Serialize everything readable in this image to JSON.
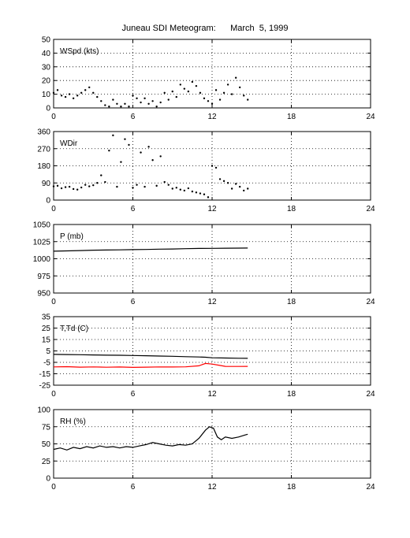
{
  "figure": {
    "title": "Juneau SDI Meteogram:      March  5, 1999"
  },
  "chart_data": [
    {
      "type": "scatter",
      "id": "wspd",
      "label": "WSpd (kts)",
      "xlim": [
        0,
        24
      ],
      "ylim": [
        0,
        50
      ],
      "xticks": [
        0,
        6,
        12,
        18,
        24
      ],
      "yticks": [
        0,
        10,
        20,
        30,
        40,
        50
      ],
      "grid": true,
      "series": [
        {
          "color": "#000000",
          "style": "dots",
          "points": [
            [
              0.0,
              11
            ],
            [
              0.3,
              13
            ],
            [
              0.6,
              9
            ],
            [
              0.9,
              8
            ],
            [
              1.2,
              10
            ],
            [
              1.5,
              7
            ],
            [
              1.8,
              9
            ],
            [
              2.1,
              11
            ],
            [
              2.4,
              13
            ],
            [
              2.7,
              15
            ],
            [
              3.0,
              11
            ],
            [
              3.3,
              8
            ],
            [
              3.6,
              5
            ],
            [
              3.9,
              2
            ],
            [
              4.2,
              1
            ],
            [
              4.5,
              6
            ],
            [
              4.8,
              3
            ],
            [
              5.1,
              1
            ],
            [
              5.4,
              3
            ],
            [
              5.7,
              1
            ],
            [
              6.0,
              9
            ],
            [
              6.3,
              7
            ],
            [
              6.6,
              4
            ],
            [
              6.9,
              7
            ],
            [
              7.2,
              3
            ],
            [
              7.5,
              5
            ],
            [
              7.8,
              1
            ],
            [
              8.1,
              4
            ],
            [
              8.4,
              11
            ],
            [
              8.7,
              6
            ],
            [
              9.0,
              12
            ],
            [
              9.3,
              8
            ],
            [
              9.6,
              17
            ],
            [
              9.9,
              14
            ],
            [
              10.2,
              12
            ],
            [
              10.5,
              19
            ],
            [
              10.8,
              16
            ],
            [
              11.1,
              11
            ],
            [
              11.4,
              7
            ],
            [
              11.7,
              5
            ],
            [
              12.0,
              3
            ],
            [
              12.3,
              13
            ],
            [
              12.6,
              6
            ],
            [
              12.9,
              11
            ],
            [
              13.2,
              17
            ],
            [
              13.5,
              10
            ],
            [
              13.8,
              22
            ],
            [
              14.1,
              15
            ],
            [
              14.4,
              9
            ],
            [
              14.7,
              6
            ]
          ]
        }
      ]
    },
    {
      "type": "scatter",
      "id": "wdir",
      "label": "WDir",
      "xlim": [
        0,
        24
      ],
      "ylim": [
        0,
        360
      ],
      "xticks": [
        0,
        6,
        12,
        18,
        24
      ],
      "yticks": [
        0,
        90,
        180,
        270,
        360
      ],
      "grid": true,
      "series": [
        {
          "color": "#000000",
          "style": "dots",
          "points": [
            [
              0.0,
              72
            ],
            [
              0.3,
              75
            ],
            [
              0.6,
              62
            ],
            [
              0.9,
              68
            ],
            [
              1.2,
              70
            ],
            [
              1.5,
              58
            ],
            [
              1.8,
              55
            ],
            [
              2.1,
              66
            ],
            [
              2.4,
              80
            ],
            [
              2.7,
              72
            ],
            [
              3.0,
              78
            ],
            [
              3.3,
              90
            ],
            [
              3.6,
              130
            ],
            [
              3.9,
              95
            ],
            [
              4.2,
              260
            ],
            [
              4.5,
              340
            ],
            [
              4.8,
              70
            ],
            [
              5.1,
              200
            ],
            [
              5.4,
              320
            ],
            [
              5.7,
              290
            ],
            [
              6.0,
              65
            ],
            [
              6.3,
              80
            ],
            [
              6.6,
              250
            ],
            [
              6.9,
              70
            ],
            [
              7.2,
              280
            ],
            [
              7.5,
              210
            ],
            [
              7.8,
              75
            ],
            [
              8.1,
              230
            ],
            [
              8.4,
              95
            ],
            [
              8.7,
              80
            ],
            [
              9.0,
              60
            ],
            [
              9.3,
              65
            ],
            [
              9.6,
              55
            ],
            [
              9.9,
              50
            ],
            [
              10.2,
              62
            ],
            [
              10.5,
              45
            ],
            [
              10.8,
              40
            ],
            [
              11.1,
              35
            ],
            [
              11.4,
              30
            ],
            [
              11.7,
              15
            ],
            [
              12.0,
              180
            ],
            [
              12.3,
              170
            ],
            [
              12.6,
              110
            ],
            [
              12.9,
              100
            ],
            [
              13.2,
              90
            ],
            [
              13.5,
              60
            ],
            [
              13.8,
              85
            ],
            [
              14.1,
              70
            ],
            [
              14.4,
              50
            ],
            [
              14.7,
              60
            ]
          ]
        }
      ]
    },
    {
      "type": "line",
      "id": "pressure",
      "label": "P (mb)",
      "xlim": [
        0,
        24
      ],
      "ylim": [
        950,
        1050
      ],
      "xticks": [
        0,
        6,
        12,
        18,
        24
      ],
      "yticks": [
        950,
        975,
        1000,
        1025,
        1050
      ],
      "grid": true,
      "series": [
        {
          "color": "#000000",
          "points": [
            [
              0.0,
              1011
            ],
            [
              1,
              1011.5
            ],
            [
              2,
              1012
            ],
            [
              3,
              1012.5
            ],
            [
              4,
              1012.8
            ],
            [
              5,
              1013
            ],
            [
              6,
              1013.3
            ],
            [
              7,
              1013.6
            ],
            [
              8,
              1014
            ],
            [
              9,
              1014.3
            ],
            [
              10,
              1014.7
            ],
            [
              11,
              1015
            ],
            [
              12,
              1015.2
            ],
            [
              13,
              1015.4
            ],
            [
              14,
              1015.5
            ],
            [
              14.7,
              1015.6
            ]
          ]
        }
      ]
    },
    {
      "type": "line",
      "id": "temp",
      "label": "T,Td (C)",
      "xlim": [
        0,
        24
      ],
      "ylim": [
        -25,
        35
      ],
      "xticks": [
        0,
        6,
        12,
        18,
        24
      ],
      "yticks": [
        -25,
        -15,
        -5,
        5,
        15,
        25,
        35
      ],
      "grid": true,
      "series": [
        {
          "color": "#000000",
          "points": [
            [
              0.0,
              2
            ],
            [
              1,
              1.8
            ],
            [
              2,
              1.7
            ],
            [
              3,
              1.5
            ],
            [
              4,
              1.3
            ],
            [
              5,
              1.2
            ],
            [
              6,
              1
            ],
            [
              7,
              0.8
            ],
            [
              8,
              0.5
            ],
            [
              9,
              0.3
            ],
            [
              10,
              0
            ],
            [
              11,
              -0.3
            ],
            [
              11.5,
              -0.5
            ],
            [
              12,
              -1
            ],
            [
              13,
              -1.2
            ],
            [
              14,
              -1.4
            ],
            [
              14.7,
              -1.5
            ]
          ]
        },
        {
          "color": "#ff0000",
          "points": [
            [
              0.0,
              -9
            ],
            [
              1,
              -8.8
            ],
            [
              2,
              -9.2
            ],
            [
              3,
              -9
            ],
            [
              4,
              -9.3
            ],
            [
              5,
              -9.1
            ],
            [
              6,
              -9.4
            ],
            [
              7,
              -9.2
            ],
            [
              8,
              -9
            ],
            [
              9,
              -9.1
            ],
            [
              10,
              -8.9
            ],
            [
              11,
              -8
            ],
            [
              11.5,
              -6
            ],
            [
              12,
              -6.5
            ],
            [
              12.5,
              -7.5
            ],
            [
              13,
              -8.5
            ],
            [
              14,
              -8.6
            ],
            [
              14.7,
              -8.5
            ]
          ]
        }
      ]
    },
    {
      "type": "line",
      "id": "rh",
      "label": "RH (%)",
      "xlim": [
        0,
        24
      ],
      "ylim": [
        0,
        100
      ],
      "xticks": [
        0,
        6,
        12,
        18,
        24
      ],
      "yticks": [
        0,
        25,
        50,
        75,
        100
      ],
      "grid": true,
      "series": [
        {
          "color": "#000000",
          "points": [
            [
              0.0,
              42
            ],
            [
              0.5,
              44
            ],
            [
              1,
              41
            ],
            [
              1.5,
              45
            ],
            [
              2,
              43
            ],
            [
              2.5,
              46
            ],
            [
              3,
              44
            ],
            [
              3.5,
              47
            ],
            [
              4,
              45
            ],
            [
              4.5,
              46
            ],
            [
              5,
              44
            ],
            [
              5.5,
              46
            ],
            [
              6,
              45
            ],
            [
              6.5,
              47
            ],
            [
              7,
              49
            ],
            [
              7.5,
              52
            ],
            [
              8,
              50
            ],
            [
              8.5,
              48
            ],
            [
              9,
              47
            ],
            [
              9.5,
              49
            ],
            [
              10,
              48
            ],
            [
              10.5,
              50
            ],
            [
              11,
              58
            ],
            [
              11.5,
              70
            ],
            [
              11.8,
              75
            ],
            [
              12.1,
              73
            ],
            [
              12.4,
              60
            ],
            [
              12.7,
              56
            ],
            [
              13,
              60
            ],
            [
              13.5,
              58
            ],
            [
              14,
              60
            ],
            [
              14.5,
              63
            ],
            [
              14.7,
              64
            ]
          ]
        }
      ]
    }
  ]
}
